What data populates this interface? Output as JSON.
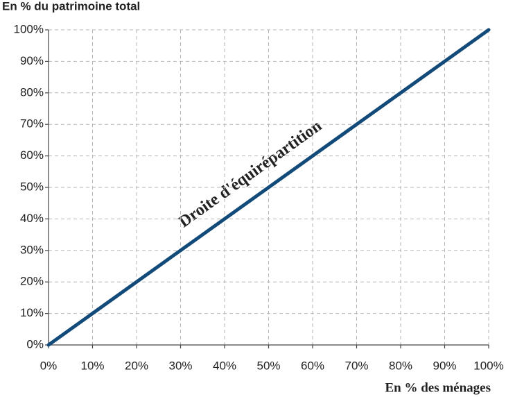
{
  "chart_data": {
    "type": "line",
    "y_label": "En % du patrimoine total",
    "x_label": "En % des ménages",
    "annotation": "Droite d'équirépartition",
    "x": [
      0,
      100
    ],
    "series": [
      {
        "color": "#124a7a",
        "values": [
          0,
          100
        ]
      }
    ],
    "xlim": [
      0,
      100
    ],
    "ylim": [
      0,
      100
    ],
    "xticks": [
      {
        "value": 0,
        "label": "0%"
      },
      {
        "value": 10,
        "label": "10%"
      },
      {
        "value": 20,
        "label": "20%"
      },
      {
        "value": 30,
        "label": "30%"
      },
      {
        "value": 40,
        "label": "40%"
      },
      {
        "value": 50,
        "label": "50%"
      },
      {
        "value": 60,
        "label": "60%"
      },
      {
        "value": 70,
        "label": "70%"
      },
      {
        "value": 80,
        "label": "80%"
      },
      {
        "value": 90,
        "label": "90%"
      },
      {
        "value": 100,
        "label": "100%"
      }
    ],
    "yticks": [
      {
        "value": 0,
        "label": "0%"
      },
      {
        "value": 10,
        "label": "10%"
      },
      {
        "value": 20,
        "label": "20%"
      },
      {
        "value": 30,
        "label": "30%"
      },
      {
        "value": 40,
        "label": "40%"
      },
      {
        "value": 50,
        "label": "50%"
      },
      {
        "value": 60,
        "label": "60%"
      },
      {
        "value": 70,
        "label": "70%"
      },
      {
        "value": 80,
        "label": "80%"
      },
      {
        "value": 90,
        "label": "90%"
      },
      {
        "value": 100,
        "label": "100%"
      }
    ],
    "grid": true
  }
}
